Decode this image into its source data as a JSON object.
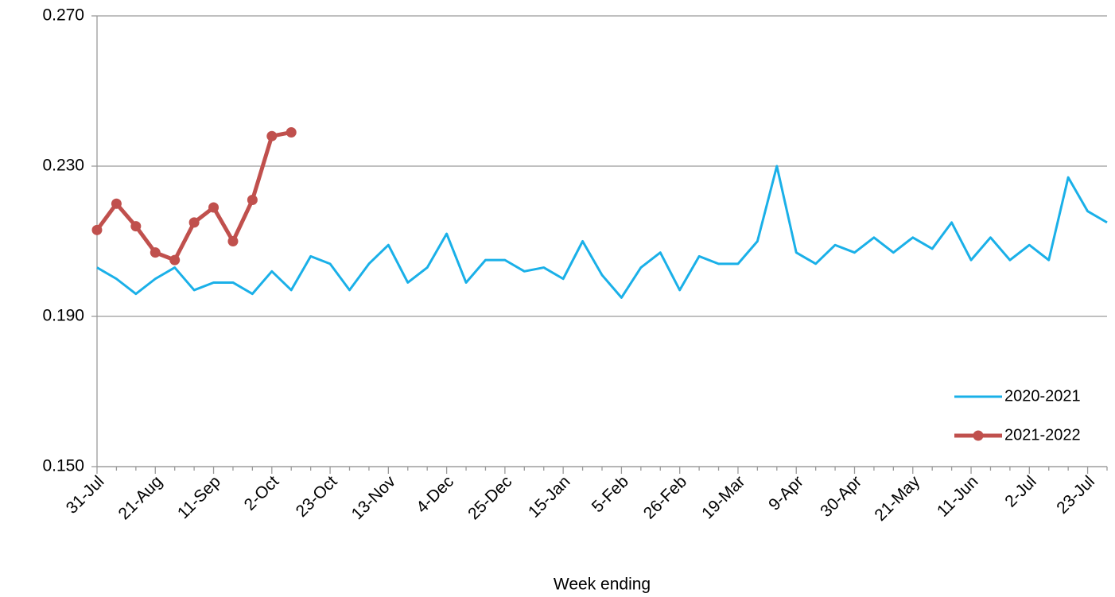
{
  "chart_data": {
    "type": "line",
    "x_label": "Week ending",
    "categories": [
      "31-Jul",
      null,
      null,
      "21-Aug",
      null,
      null,
      "11-Sep",
      null,
      null,
      "2-Oct",
      null,
      null,
      "23-Oct",
      null,
      null,
      "13-Nov",
      null,
      null,
      "4-Dec",
      null,
      null,
      "25-Dec",
      null,
      null,
      "15-Jan",
      null,
      null,
      "5-Feb",
      null,
      null,
      "26-Feb",
      null,
      null,
      "19-Mar",
      null,
      null,
      "9-Apr",
      null,
      null,
      "30-Apr",
      null,
      null,
      "21-May",
      null,
      null,
      "11-Jun",
      null,
      null,
      "2-Jul",
      null,
      null,
      "23-Jul",
      null
    ],
    "series": [
      {
        "name": "2020-2021",
        "color": "#1ab0e8",
        "markers": false,
        "values": [
          0.203,
          0.2,
          0.196,
          0.2,
          0.203,
          0.197,
          0.199,
          0.199,
          0.196,
          0.202,
          0.197,
          0.206,
          0.204,
          0.197,
          0.204,
          0.209,
          0.199,
          0.203,
          0.212,
          0.199,
          0.205,
          0.205,
          0.202,
          0.203,
          0.2,
          0.21,
          0.201,
          0.195,
          0.203,
          0.207,
          0.197,
          0.206,
          0.204,
          0.204,
          0.21,
          0.23,
          0.207,
          0.204,
          0.209,
          0.207,
          0.211,
          0.207,
          0.211,
          0.208,
          0.215,
          0.205,
          0.211,
          0.205,
          0.209,
          0.205,
          0.227,
          0.218,
          0.215
        ]
      },
      {
        "name": "2021-2022",
        "color": "#c0504d",
        "markers": true,
        "values": [
          0.213,
          0.22,
          0.214,
          0.207,
          0.205,
          0.215,
          0.219,
          0.21,
          0.221,
          0.238,
          0.239,
          null,
          null,
          null,
          null,
          null,
          null,
          null,
          null,
          null,
          null,
          null,
          null,
          null,
          null,
          null,
          null,
          null,
          null,
          null,
          null,
          null,
          null,
          null,
          null,
          null,
          null,
          null,
          null,
          null,
          null,
          null,
          null,
          null,
          null,
          null,
          null,
          null,
          null,
          null,
          null,
          null,
          null
        ]
      }
    ],
    "ylim": [
      0.15,
      0.27
    ],
    "yticks": [
      {
        "value": 0.15,
        "label": "0.150"
      },
      {
        "value": 0.19,
        "label": "0.190"
      },
      {
        "value": 0.23,
        "label": "0.230"
      },
      {
        "value": 0.27,
        "label": "0.270"
      }
    ],
    "grid": true,
    "legend": "lower-right"
  }
}
